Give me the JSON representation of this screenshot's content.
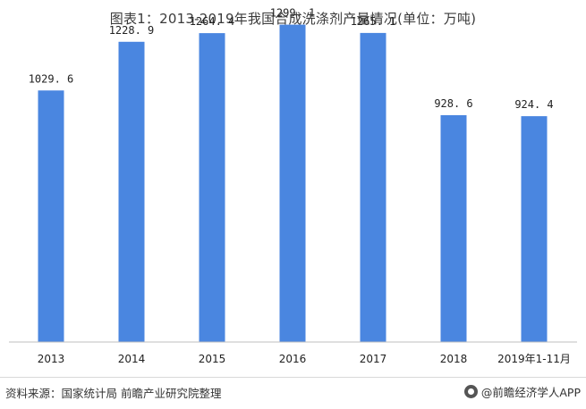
{
  "title": "图表1：2013-2019年我国合成洗涤剂产量情况(单位：万吨)",
  "source": "资料来源：国家统计局 前瞻产业研究院整理",
  "brand": "@前瞻经济学人APP",
  "colors": {
    "bar": "#4a86e0",
    "axis": "#bfbfbf"
  },
  "chart_data": {
    "type": "bar",
    "title": "图表1：2013-2019年我国合成洗涤剂产量情况(单位：万吨)",
    "unit": "万吨",
    "categories": [
      "2013",
      "2014",
      "2015",
      "2016",
      "2017",
      "2018",
      "2019年1-11月"
    ],
    "values": [
      1029.6,
      1228.9,
      1264.4,
      1299.1,
      1265.1,
      928.6,
      924.4
    ],
    "value_labels": [
      "1029. 6",
      "1228. 9",
      "1264. 4",
      "1299. 1",
      "1265. 1",
      "928. 6",
      "924. 4"
    ],
    "ylim": [
      0,
      1400
    ],
    "grid": false,
    "legend": "none"
  }
}
